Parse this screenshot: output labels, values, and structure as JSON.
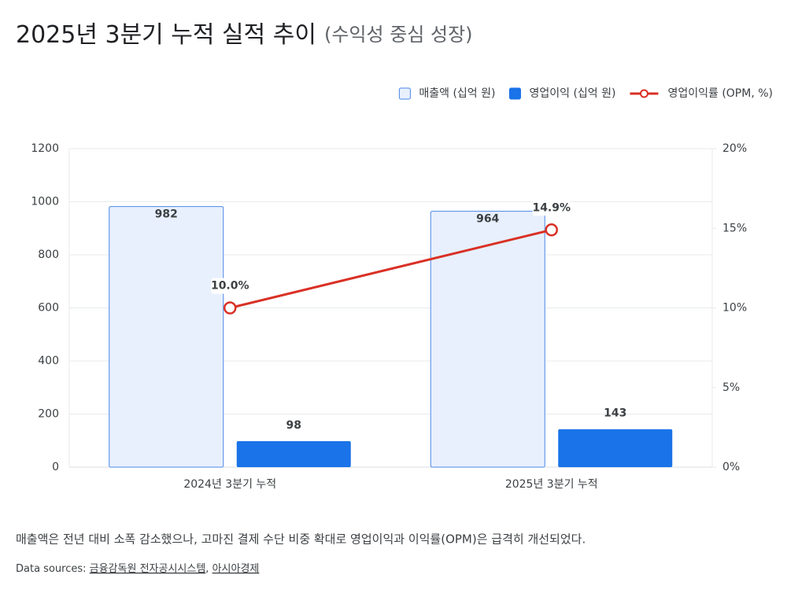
{
  "chart_data": {
    "type": "bar",
    "title": "2025년 3분기 누적 실적 추이",
    "subtitle": "(수익성 중심 성장)",
    "categories": [
      "2024년 3분기 누적",
      "2025년 3분기 누적"
    ],
    "series": [
      {
        "name": "매출액 (십억 원)",
        "type": "bar",
        "color": "#e8f0fe",
        "border": "#4a86e8",
        "label_color": "#1a5fd0",
        "values": [
          982,
          964
        ]
      },
      {
        "name": "영업이익 (십억 원)",
        "type": "bar",
        "color": "#1a73e8",
        "label_color": "#1a5fd0",
        "values": [
          98,
          143
        ]
      },
      {
        "name": "영업이익률 (OPM, %)",
        "type": "line",
        "axis": "y2",
        "color": "#d93025",
        "values": [
          10.0,
          14.9
        ],
        "value_labels": [
          "10.0%",
          "14.9%"
        ]
      }
    ],
    "ylim": [
      0,
      1200
    ],
    "yticks": [
      0,
      200,
      400,
      600,
      800,
      1000,
      1200
    ],
    "y2lim": [
      0,
      20
    ],
    "y2ticks": [
      {
        "value": 0,
        "label": "0%"
      },
      {
        "value": 5,
        "label": "5%"
      },
      {
        "value": 10,
        "label": "10%"
      },
      {
        "value": 15,
        "label": "15%"
      },
      {
        "value": 20,
        "label": "20%"
      }
    ],
    "grid": true,
    "legend": "top-right",
    "note": "매출액은 전년 대비 소폭 감소했으나, 고마진 결제 수단 비중 확대로 영업이익과 이익률(OPM)은 급격히 개선되었다.",
    "sources_label": "Data sources:",
    "sources": [
      "금융감독원 전자공시시스템",
      "아시아경제"
    ],
    "sources_separator": ", "
  }
}
